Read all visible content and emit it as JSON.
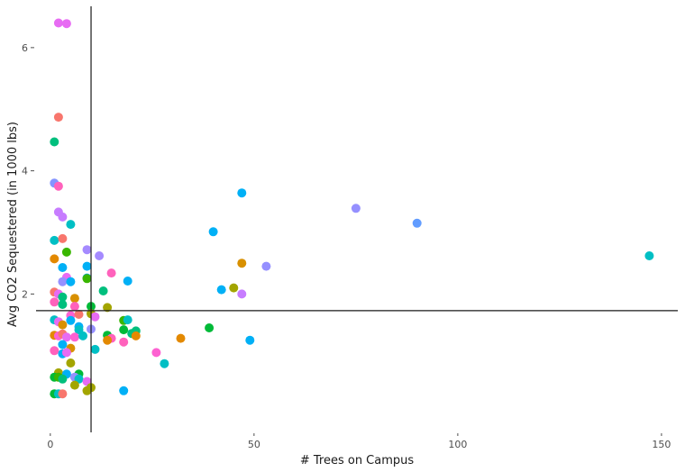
{
  "chart_data": {
    "type": "scatter",
    "title": "",
    "xlabel": "# Trees on Campus",
    "ylabel": "Avg CO2 Sequestered (in 1000 lbs)",
    "xlim": [
      -3.5,
      154
    ],
    "ylim": [
      -0.1,
      6.7
    ],
    "x_ticks": [
      0,
      50,
      100,
      150
    ],
    "y_ticks": [
      2,
      4,
      6
    ],
    "reference_lines": {
      "vertical_x": 10,
      "horizontal_y": 1.73
    },
    "grid": false,
    "legend": "none",
    "points": [
      {
        "x": 2,
        "y": 6.4,
        "color": "#e76bf3"
      },
      {
        "x": 4,
        "y": 6.39,
        "color": "#e76bf3"
      },
      {
        "x": 2,
        "y": 4.87,
        "color": "#f8766d"
      },
      {
        "x": 1,
        "y": 4.47,
        "color": "#00bf7d"
      },
      {
        "x": 1,
        "y": 3.8,
        "color": "#8494ff"
      },
      {
        "x": 2,
        "y": 3.75,
        "color": "#ff62bc"
      },
      {
        "x": 2,
        "y": 3.33,
        "color": "#c77cff"
      },
      {
        "x": 3,
        "y": 3.25,
        "color": "#c77cff"
      },
      {
        "x": 5,
        "y": 3.13,
        "color": "#00bfc4"
      },
      {
        "x": 1,
        "y": 2.87,
        "color": "#00bfc4"
      },
      {
        "x": 3,
        "y": 2.9,
        "color": "#f8766d"
      },
      {
        "x": 9,
        "y": 2.72,
        "color": "#a58aff"
      },
      {
        "x": 4,
        "y": 2.68,
        "color": "#39b600"
      },
      {
        "x": 12,
        "y": 2.62,
        "color": "#a58aff"
      },
      {
        "x": 1,
        "y": 2.57,
        "color": "#e38900"
      },
      {
        "x": 3,
        "y": 2.43,
        "color": "#00b0f6"
      },
      {
        "x": 9,
        "y": 2.45,
        "color": "#00b0f6"
      },
      {
        "x": 15,
        "y": 2.34,
        "color": "#ff62bc"
      },
      {
        "x": 4,
        "y": 2.27,
        "color": "#e76bf3"
      },
      {
        "x": 3,
        "y": 2.2,
        "color": "#9590ff"
      },
      {
        "x": 5,
        "y": 2.2,
        "color": "#00b0f6"
      },
      {
        "x": 9,
        "y": 2.26,
        "color": "#00a5ff"
      },
      {
        "x": 9,
        "y": 2.25,
        "color": "#39b600"
      },
      {
        "x": 19,
        "y": 2.21,
        "color": "#00b0f6"
      },
      {
        "x": 13,
        "y": 2.05,
        "color": "#00bf7d"
      },
      {
        "x": 1,
        "y": 2.03,
        "color": "#f8766d"
      },
      {
        "x": 2,
        "y": 2.0,
        "color": "#e76bf3"
      },
      {
        "x": 3,
        "y": 1.95,
        "color": "#00bf7d"
      },
      {
        "x": 6,
        "y": 1.93,
        "color": "#d89000"
      },
      {
        "x": 1,
        "y": 1.87,
        "color": "#ff62bc"
      },
      {
        "x": 3,
        "y": 1.83,
        "color": "#00bf7d"
      },
      {
        "x": 6,
        "y": 1.8,
        "color": "#ff62bc"
      },
      {
        "x": 10,
        "y": 1.8,
        "color": "#00ba38"
      },
      {
        "x": 14,
        "y": 1.78,
        "color": "#a3a500"
      },
      {
        "x": 10,
        "y": 1.68,
        "color": "#a3a500"
      },
      {
        "x": 5,
        "y": 1.65,
        "color": "#fd61d1"
      },
      {
        "x": 7,
        "y": 1.67,
        "color": "#f8766d"
      },
      {
        "x": 11,
        "y": 1.63,
        "color": "#e76bf3"
      },
      {
        "x": 1,
        "y": 1.58,
        "color": "#00bfc4"
      },
      {
        "x": 2,
        "y": 1.55,
        "color": "#e76bf3"
      },
      {
        "x": 3,
        "y": 1.5,
        "color": "#d89000"
      },
      {
        "x": 5,
        "y": 1.57,
        "color": "#00b0f6"
      },
      {
        "x": 18,
        "y": 1.57,
        "color": "#39b600"
      },
      {
        "x": 19,
        "y": 1.58,
        "color": "#00bfc4"
      },
      {
        "x": 7,
        "y": 1.47,
        "color": "#00b0f6"
      },
      {
        "x": 7,
        "y": 1.42,
        "color": "#00bfc4"
      },
      {
        "x": 10,
        "y": 1.43,
        "color": "#9590ff"
      },
      {
        "x": 18,
        "y": 1.42,
        "color": "#00ba38"
      },
      {
        "x": 21,
        "y": 1.4,
        "color": "#00bf7d"
      },
      {
        "x": 1,
        "y": 1.33,
        "color": "#e38900"
      },
      {
        "x": 2,
        "y": 1.32,
        "color": "#fd61d1"
      },
      {
        "x": 3,
        "y": 1.35,
        "color": "#f8766d"
      },
      {
        "x": 4,
        "y": 1.3,
        "color": "#e76bf3"
      },
      {
        "x": 6,
        "y": 1.3,
        "color": "#fd61d1"
      },
      {
        "x": 8,
        "y": 1.32,
        "color": "#00bfc4"
      },
      {
        "x": 14,
        "y": 1.33,
        "color": "#00ba38"
      },
      {
        "x": 15,
        "y": 1.28,
        "color": "#ff62bc"
      },
      {
        "x": 14,
        "y": 1.25,
        "color": "#e38900"
      },
      {
        "x": 20,
        "y": 1.36,
        "color": "#00bf7d"
      },
      {
        "x": 21,
        "y": 1.32,
        "color": "#e38900"
      },
      {
        "x": 32,
        "y": 1.28,
        "color": "#e38900"
      },
      {
        "x": 39,
        "y": 1.45,
        "color": "#00ba38"
      },
      {
        "x": 18,
        "y": 1.22,
        "color": "#ff62bc"
      },
      {
        "x": 3,
        "y": 1.18,
        "color": "#00b0f6"
      },
      {
        "x": 5,
        "y": 1.12,
        "color": "#d89000"
      },
      {
        "x": 1,
        "y": 1.08,
        "color": "#ff62bc"
      },
      {
        "x": 3,
        "y": 1.03,
        "color": "#00b0f6"
      },
      {
        "x": 4,
        "y": 1.05,
        "color": "#e76bf3"
      },
      {
        "x": 11,
        "y": 1.1,
        "color": "#00bfc4"
      },
      {
        "x": 26,
        "y": 1.05,
        "color": "#fd61d1"
      },
      {
        "x": 49,
        "y": 1.25,
        "color": "#00b0f6"
      },
      {
        "x": 5,
        "y": 0.88,
        "color": "#a3a500"
      },
      {
        "x": 28,
        "y": 0.87,
        "color": "#00bfc4"
      },
      {
        "x": 2,
        "y": 0.72,
        "color": "#a3a500"
      },
      {
        "x": 4,
        "y": 0.7,
        "color": "#00b0f6"
      },
      {
        "x": 7,
        "y": 0.7,
        "color": "#00ba38"
      },
      {
        "x": 1,
        "y": 0.65,
        "color": "#00ba38"
      },
      {
        "x": 2,
        "y": 0.65,
        "color": "#39b600"
      },
      {
        "x": 3,
        "y": 0.62,
        "color": "#00bf7d"
      },
      {
        "x": 6,
        "y": 0.65,
        "color": "#9590ff"
      },
      {
        "x": 7,
        "y": 0.62,
        "color": "#00bfc4"
      },
      {
        "x": 9,
        "y": 0.58,
        "color": "#e76bf3"
      },
      {
        "x": 6,
        "y": 0.52,
        "color": "#a3a500"
      },
      {
        "x": 10,
        "y": 0.48,
        "color": "#a3a500"
      },
      {
        "x": 9,
        "y": 0.43,
        "color": "#a3a500"
      },
      {
        "x": 18,
        "y": 0.43,
        "color": "#00b0f6"
      },
      {
        "x": 1,
        "y": 0.38,
        "color": "#00ba38"
      },
      {
        "x": 2,
        "y": 0.38,
        "color": "#00bfc4"
      },
      {
        "x": 3,
        "y": 0.38,
        "color": "#f8766d"
      },
      {
        "x": 40,
        "y": 3.01,
        "color": "#00b0f6"
      },
      {
        "x": 47,
        "y": 3.64,
        "color": "#00b0f6"
      },
      {
        "x": 47,
        "y": 2.5,
        "color": "#d89000"
      },
      {
        "x": 53,
        "y": 2.45,
        "color": "#9590ff"
      },
      {
        "x": 42,
        "y": 2.07,
        "color": "#00b0f6"
      },
      {
        "x": 45,
        "y": 2.1,
        "color": "#a3a500"
      },
      {
        "x": 47,
        "y": 2.0,
        "color": "#c77cff"
      },
      {
        "x": 75,
        "y": 3.39,
        "color": "#9590ff"
      },
      {
        "x": 90,
        "y": 3.15,
        "color": "#619cff"
      },
      {
        "x": 147,
        "y": 2.62,
        "color": "#00bfc4"
      }
    ]
  }
}
